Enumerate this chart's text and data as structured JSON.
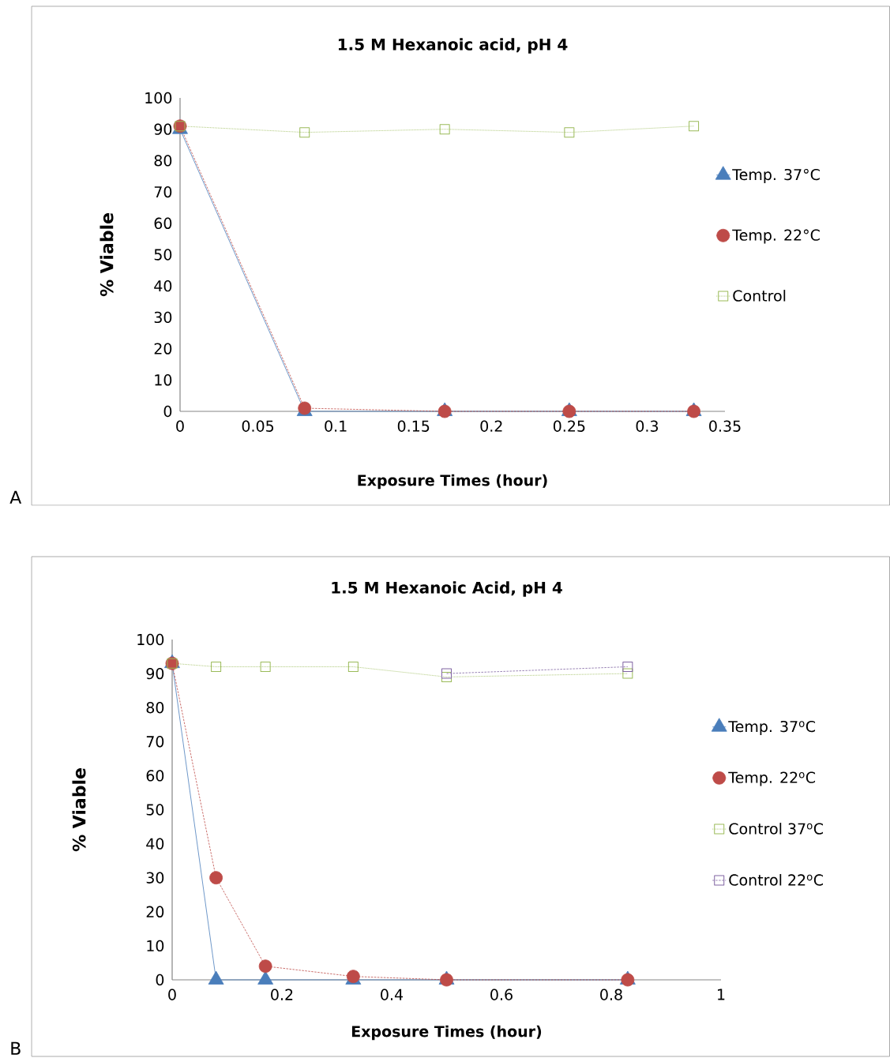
{
  "chart_data": [
    {
      "type": "line",
      "title": "1.5 M Hexanoic acid, pH 4",
      "xlabel": "Exposure Times (hour)",
      "ylabel": "% Viable",
      "xlim": [
        0,
        0.35
      ],
      "xticks": [
        0,
        0.05,
        0.1,
        0.15,
        0.2,
        0.25,
        0.3,
        0.35
      ],
      "ylim": [
        0,
        100
      ],
      "yticks": [
        0,
        10,
        20,
        30,
        40,
        50,
        60,
        70,
        80,
        90,
        100
      ],
      "grid": false,
      "legend": "right",
      "annotations": [
        "A"
      ],
      "series": [
        {
          "name": "Temp. 37°C",
          "color": "#4a7ebb",
          "x": [
            0,
            0.08,
            0.17,
            0.25,
            0.33
          ],
          "values": [
            90,
            0,
            0,
            0,
            0
          ],
          "marker": "triangle",
          "line_style": "solid"
        },
        {
          "name": "Temp. 22°C",
          "color": "#be4b48",
          "x": [
            0,
            0.08,
            0.17,
            0.25,
            0.33
          ],
          "values": [
            91,
            1,
            0,
            0,
            0
          ],
          "marker": "circle",
          "line_style": "dashed"
        },
        {
          "name": "Control",
          "color": "#9bbb59",
          "x": [
            0,
            0.08,
            0.17,
            0.25,
            0.33
          ],
          "values": [
            91,
            89,
            90,
            89,
            91
          ],
          "marker": "square",
          "line_style": "dotted"
        }
      ]
    },
    {
      "type": "line",
      "title": "1.5 M Hexanoic Acid, pH 4",
      "xlabel": "Exposure Times (hour)",
      "ylabel": "% Viable",
      "xlim": [
        0,
        1
      ],
      "xticks": [
        0,
        0.2,
        0.4,
        0.6,
        0.8,
        1
      ],
      "ylim": [
        0,
        100
      ],
      "yticks": [
        0,
        10,
        20,
        30,
        40,
        50,
        60,
        70,
        80,
        90,
        100
      ],
      "grid": false,
      "legend": "right",
      "annotations": [
        "B"
      ],
      "series": [
        {
          "name": "Temp. 37$^{o}$C",
          "color": "#4a7ebb",
          "x": [
            0,
            0.08,
            0.17,
            0.33,
            0.5,
            0.83
          ],
          "values": [
            93,
            0,
            0,
            0,
            0,
            0
          ],
          "marker": "triangle",
          "line_style": "solid"
        },
        {
          "name": "Temp. 22$^{o}$C",
          "color": "#be4b48",
          "x": [
            0,
            0.08,
            0.17,
            0.33,
            0.5,
            0.83
          ],
          "values": [
            93,
            30,
            4,
            1,
            0,
            0
          ],
          "marker": "circle",
          "line_style": "dashed"
        },
        {
          "name": "Control 37$^{o}$C",
          "color": "#9bbb59",
          "x": [
            0,
            0.08,
            0.17,
            0.33,
            0.5,
            0.83
          ],
          "values": [
            93,
            92,
            92,
            92,
            89,
            90
          ],
          "marker": "square",
          "line_style": "dotted"
        },
        {
          "name": "Control 22$^{o}$C",
          "color": "#8064a2",
          "x": [
            0.5,
            0.83
          ],
          "values": [
            90,
            92
          ],
          "marker": "square",
          "line_style": "dashed"
        }
      ]
    }
  ]
}
